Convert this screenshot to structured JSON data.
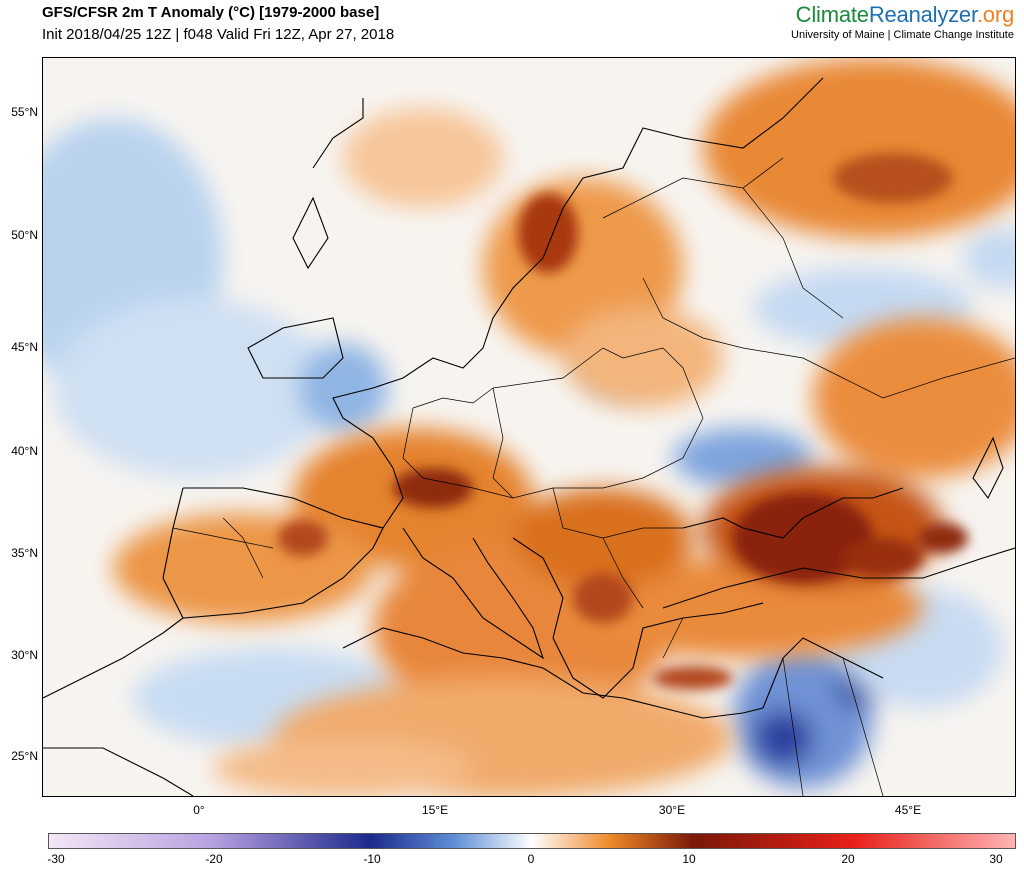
{
  "header": {
    "title": "GFS/CFSR 2m T Anomaly (°C) [1979-2000 base]",
    "subtitle": "Init 2018/04/25 12Z | f048 Valid Fri 12Z, Apr 27, 2018"
  },
  "brand": {
    "logo_part1": "Climate",
    "logo_part2": "Reanalyzer",
    "logo_part3": ".org",
    "tagline": "University of Maine | Climate Change Institute"
  },
  "map": {
    "lat_labels": [
      "55°N",
      "50°N",
      "45°N",
      "40°N",
      "35°N",
      "30°N",
      "25°N"
    ],
    "lon_labels": [
      "0°",
      "15°E",
      "30°E",
      "45°E"
    ],
    "units": "°C"
  },
  "colorbar": {
    "labels": [
      "-30",
      "-20",
      "-10",
      "0",
      "10",
      "20",
      "30"
    ],
    "colors": {
      "neg30": "#f4e6f4",
      "neg20": "#b9a2e2",
      "neg10": "#1c2a8c",
      "neg5": "#5f8fd6",
      "zero": "#ffffff",
      "pos5": "#f08a2a",
      "pos10": "#7a1808",
      "pos20": "#e8201a",
      "pos30": "#ffb4b4"
    }
  }
}
